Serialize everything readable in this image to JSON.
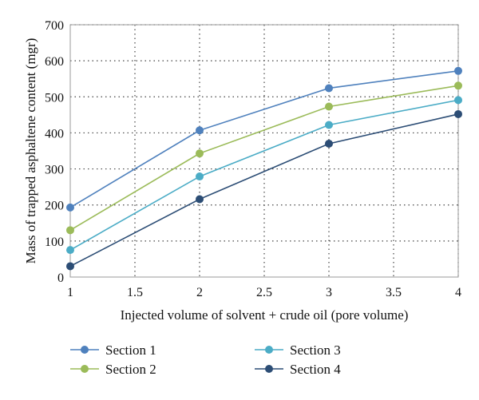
{
  "chart_data": {
    "type": "line",
    "title": "",
    "xlabel": "Injected volume of solvent + crude oil (pore volume)",
    "ylabel": "Mass of trapped asphaltene content (mgr)",
    "xlim": [
      1,
      4
    ],
    "ylim": [
      0,
      700
    ],
    "x_ticks": [
      "1",
      "1.5",
      "2",
      "2.5",
      "3",
      "3.5",
      "4"
    ],
    "y_ticks": [
      "0",
      "100",
      "200",
      "300",
      "400",
      "500",
      "600",
      "700"
    ],
    "grid": "dotted",
    "legend_position": "bottom",
    "x": [
      1,
      2,
      3,
      4
    ],
    "series": [
      {
        "name": "Section 1",
        "color": "#4f81bd",
        "values": [
          193,
          407,
          524,
          572
        ]
      },
      {
        "name": "Section 2",
        "color": "#9bbb59",
        "values": [
          130,
          343,
          473,
          531
        ]
      },
      {
        "name": "Section 3",
        "color": "#4bacc6",
        "values": [
          75,
          279,
          422,
          491
        ]
      },
      {
        "name": "Section 4",
        "color": "#2c4d75",
        "values": [
          30,
          216,
          370,
          452
        ]
      }
    ]
  }
}
